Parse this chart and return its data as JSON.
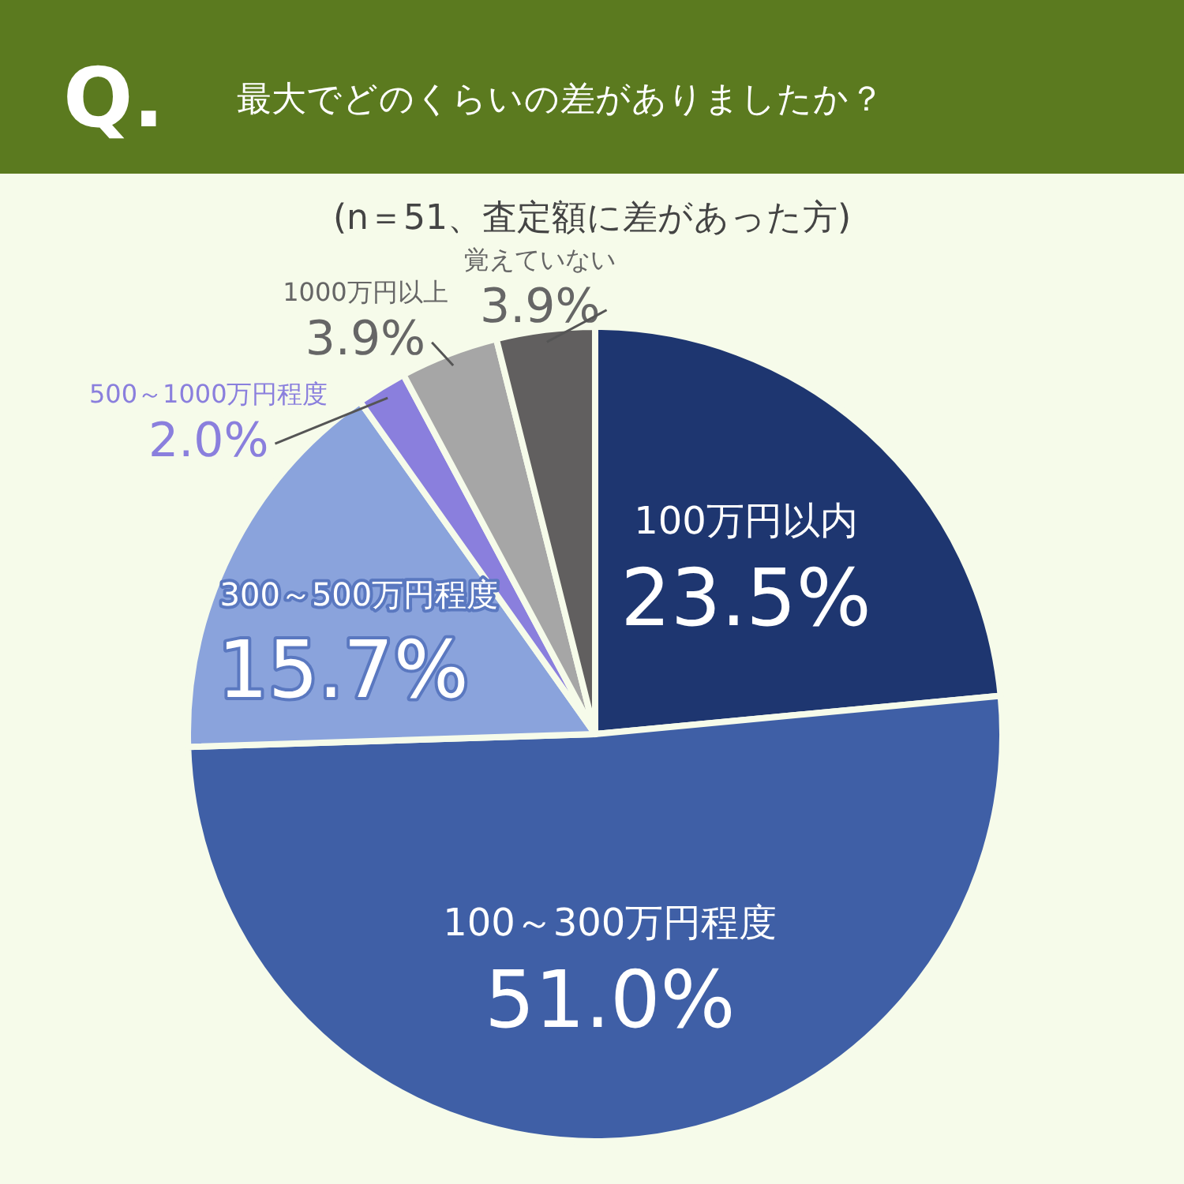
{
  "chart_data": {
    "type": "pie",
    "title": "最大でどのくらいの差がありましたか？",
    "subtitle": "(n＝51、査定額に差があった方)",
    "annotations": [
      "Q."
    ],
    "categories": [
      "100万円以内",
      "100～300万円程度",
      "300～500万円程度",
      "500～1000万円程度",
      "1000万円以上",
      "覚えていない"
    ],
    "values": [
      23.5,
      51.0,
      15.7,
      2.0,
      3.9,
      3.9
    ],
    "colors": [
      "#1e3670",
      "#3f5fa6",
      "#8aa3dc",
      "#8a7fdd",
      "#a6a6a6",
      "#615f5f"
    ],
    "value_labels": [
      "23.5%",
      "51.0%",
      "15.7%",
      "2.0%",
      "3.9%",
      "3.9%"
    ]
  }
}
